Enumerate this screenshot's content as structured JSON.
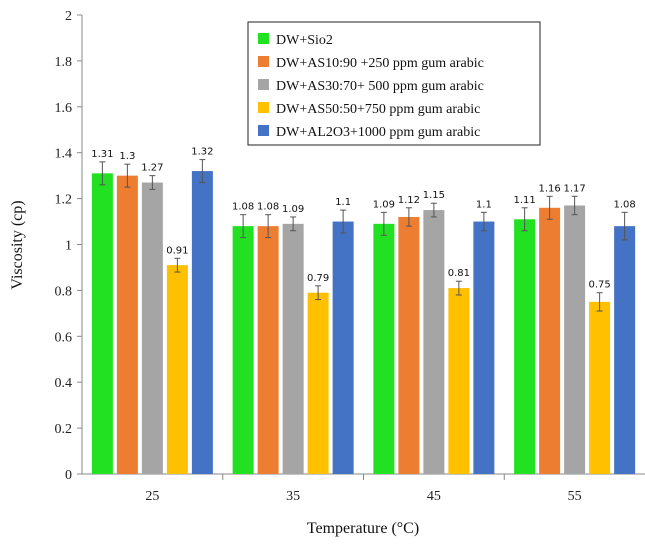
{
  "chart_data": {
    "type": "bar",
    "title": "",
    "xlabel": "Temperature (°C)",
    "ylabel": "Viscosity (cp)",
    "ylim": [
      0,
      2
    ],
    "yticks": [
      "0",
      "0.2",
      "0.4",
      "0.6",
      "0.8",
      "1",
      "1.2",
      "1.4",
      "1.6",
      "1.8",
      "2"
    ],
    "ytick_values": [
      0,
      0.2,
      0.4,
      0.6,
      0.8,
      1,
      1.2,
      1.4,
      1.6,
      1.8,
      2
    ],
    "categories": [
      "25",
      "35",
      "45",
      "55"
    ],
    "grid": false,
    "legend_position": "top-right",
    "series": [
      {
        "name": "DW+Sio2",
        "color": "#22e022",
        "values": [
          1.31,
          1.08,
          1.09,
          1.11
        ],
        "labels": [
          "1.31",
          "1.08",
          "1.09",
          "1.11"
        ],
        "errors": [
          0.05,
          0.05,
          0.05,
          0.05
        ]
      },
      {
        "name": "DW+AS10:90 +250 ppm gum arabic",
        "color": "#ed7d31",
        "values": [
          1.3,
          1.08,
          1.12,
          1.16
        ],
        "labels": [
          "1.3",
          "1.08",
          "1.12",
          "1.16"
        ],
        "errors": [
          0.05,
          0.05,
          0.04,
          0.05
        ]
      },
      {
        "name": "DW+AS30:70+ 500 ppm gum arabic",
        "color": "#a5a5a5",
        "values": [
          1.27,
          1.09,
          1.15,
          1.17
        ],
        "labels": [
          "1.27",
          "1.09",
          "1.15",
          "1.17"
        ],
        "errors": [
          0.03,
          0.03,
          0.03,
          0.04
        ]
      },
      {
        "name": "DW+AS50:50+750 ppm gum arabic",
        "color": "#ffc000",
        "values": [
          0.91,
          0.79,
          0.81,
          0.75
        ],
        "labels": [
          "0.91",
          "0.79",
          "0.81",
          "0.75"
        ],
        "errors": [
          0.03,
          0.03,
          0.03,
          0.04
        ]
      },
      {
        "name": "DW+AL2O3+1000 ppm gum arabic",
        "color": "#4472c4",
        "values": [
          1.32,
          1.1,
          1.1,
          1.08
        ],
        "labels": [
          "1.32",
          "1.1",
          "1.1",
          "1.08"
        ],
        "errors": [
          0.05,
          0.05,
          0.04,
          0.06
        ]
      }
    ]
  }
}
